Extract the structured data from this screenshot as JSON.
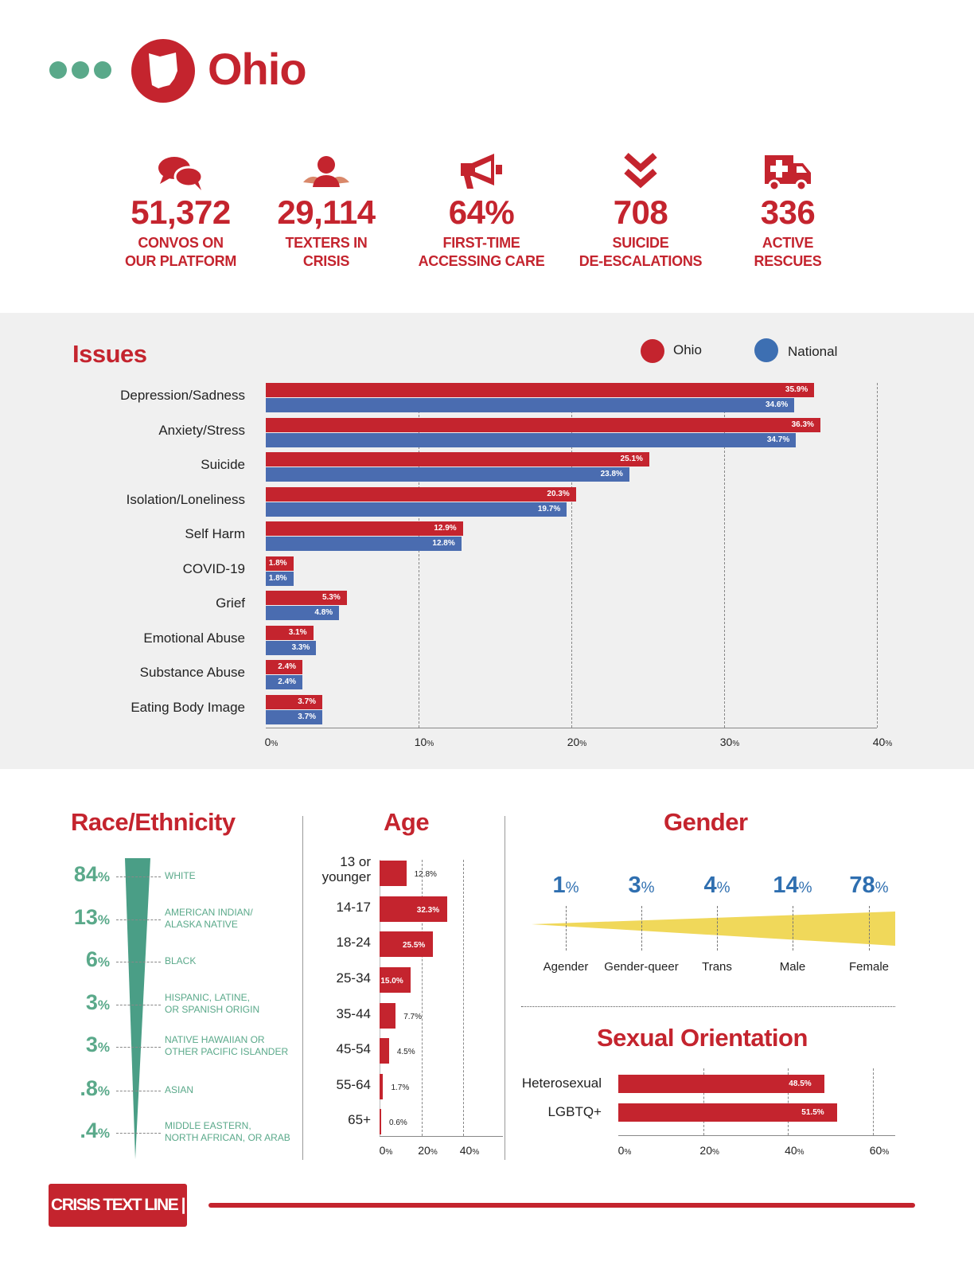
{
  "header": {
    "title": "Ohio"
  },
  "stats": [
    {
      "icon": "chat-bubbles-icon",
      "value": "51,372",
      "label_1": "CONVOS ON",
      "label_2": "OUR PLATFORM"
    },
    {
      "icon": "person-icon",
      "value": "29,114",
      "label_1": "TEXTERS IN",
      "label_2": "CRISIS"
    },
    {
      "icon": "megaphone-icon",
      "value": "64%",
      "label_1": "FIRST-TIME",
      "label_2": "ACCESSING CARE"
    },
    {
      "icon": "double-chevron-down-icon",
      "value": "708",
      "label_1": "SUICIDE",
      "label_2": "DE-ESCALATIONS"
    },
    {
      "icon": "ambulance-icon",
      "value": "336",
      "label_1": "ACTIVE",
      "label_2": "RESCUES"
    }
  ],
  "colors": {
    "red": "#c4242e",
    "blue": "#4a6cb0",
    "green": "#5aa98a",
    "yellow": "#f0d85a",
    "gender_blue": "#2f6fb0"
  },
  "issues": {
    "title": "Issues",
    "legend": {
      "ohio": "Ohio",
      "national": "National"
    }
  },
  "race": {
    "title": "Race/Ethnicity",
    "items": [
      {
        "pct": "84",
        "unit": "%",
        "label_1": "WHITE",
        "label_2": ""
      },
      {
        "pct": "13",
        "unit": "%",
        "label_1": "AMERICAN INDIAN/",
        "label_2": "ALASKA NATIVE"
      },
      {
        "pct": "6",
        "unit": "%",
        "label_1": "BLACK",
        "label_2": ""
      },
      {
        "pct": "3",
        "unit": "%",
        "label_1": "HISPANIC, LATINE,",
        "label_2": "OR SPANISH ORIGIN"
      },
      {
        "pct": "3",
        "unit": "%",
        "label_1": "NATIVE HAWAIIAN OR",
        "label_2": "OTHER PACIFIC ISLANDER"
      },
      {
        "pct": ".8",
        "unit": "%",
        "label_1": "ASIAN",
        "label_2": ""
      },
      {
        "pct": ".4",
        "unit": "%",
        "label_1": "MIDDLE EASTERN,",
        "label_2": "NORTH AFRICAN, OR ARAB"
      }
    ]
  },
  "age": {
    "title": "Age"
  },
  "gender": {
    "title": "Gender",
    "items": [
      {
        "pct": "1",
        "unit": "%",
        "label": "Agender"
      },
      {
        "pct": "3",
        "unit": "%",
        "label": "Gender-queer"
      },
      {
        "pct": "4",
        "unit": "%",
        "label": "Trans"
      },
      {
        "pct": "14",
        "unit": "%",
        "label": "Male"
      },
      {
        "pct": "78",
        "unit": "%",
        "label": "Female"
      }
    ]
  },
  "orientation": {
    "title": "Sexual Orientation"
  },
  "footer": {
    "brand": "CRISIS TEXT LINE |"
  },
  "chart_data": [
    {
      "type": "bar",
      "orientation": "horizontal",
      "title": "Issues",
      "categories": [
        "Depression/Sadness",
        "Anxiety/Stress",
        "Suicide",
        "Isolation/Loneliness",
        "Self Harm",
        "COVID-19",
        "Grief",
        "Emotional Abuse",
        "Substance Abuse",
        "Eating Body Image"
      ],
      "series": [
        {
          "name": "Ohio",
          "color": "#c4242e",
          "values": [
            35.9,
            36.3,
            25.1,
            20.3,
            12.9,
            1.8,
            5.3,
            3.1,
            2.4,
            3.7
          ]
        },
        {
          "name": "National",
          "color": "#4a6cb0",
          "values": [
            34.6,
            34.7,
            23.8,
            19.7,
            12.8,
            1.8,
            4.8,
            3.3,
            2.4,
            3.7
          ]
        }
      ],
      "value_suffix": "%",
      "xlim": [
        0,
        40
      ],
      "xticks": [
        "0",
        "10",
        "20",
        "30",
        "40"
      ],
      "tick_unit": "%",
      "grid": "vertical dashed",
      "legend": "top-right"
    },
    {
      "type": "bar",
      "orientation": "horizontal",
      "title": "Age",
      "categories": [
        "13 or younger",
        "14-17",
        "18-24",
        "25-34",
        "35-44",
        "45-54",
        "55-64",
        "65+"
      ],
      "values": [
        12.8,
        32.3,
        25.5,
        15.0,
        7.7,
        4.5,
        1.7,
        0.6
      ],
      "labels": [
        "12.8%",
        "32.3%",
        "25.5%",
        "15.0%",
        "7.7%",
        "4.5%",
        "1.7%",
        "0.6%"
      ],
      "xlim": [
        0,
        40
      ],
      "xticks": [
        "0",
        "20",
        "40"
      ],
      "tick_unit": "%"
    },
    {
      "type": "bar",
      "orientation": "horizontal",
      "title": "Sexual Orientation",
      "categories": [
        "Heterosexual",
        "LGBTQ+"
      ],
      "values": [
        48.5,
        51.5
      ],
      "labels": [
        "48.5%",
        "51.5%"
      ],
      "xlim": [
        0,
        60
      ],
      "xticks": [
        "0",
        "20",
        "40",
        "60"
      ],
      "tick_unit": "%"
    }
  ]
}
